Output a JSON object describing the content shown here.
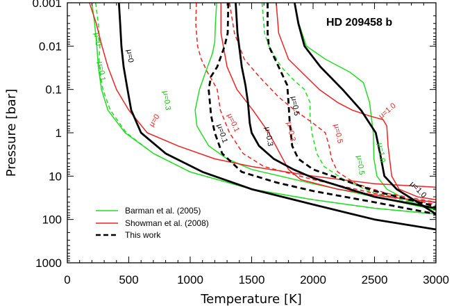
{
  "chart_data": {
    "type": "line",
    "title": "HD 209458 b",
    "xlabel": "Temperature [K]",
    "ylabel": "Pressure [bar]",
    "xlim": [
      0,
      3000
    ],
    "ylim": [
      0.001,
      1000
    ],
    "y_scale": "log",
    "y_reversed": true,
    "x_ticks": [
      0,
      500,
      1000,
      1500,
      2000,
      2500,
      3000
    ],
    "x_tick_labels": [
      "0",
      "500",
      "1000",
      "1500",
      "2000",
      "2500",
      "3000"
    ],
    "y_ticks": [
      0.001,
      0.01,
      0.1,
      1,
      10,
      100,
      1000
    ],
    "y_tick_labels": [
      "0.001",
      "0.01",
      "0.1",
      "1",
      "10",
      "100",
      "1000"
    ],
    "legend": {
      "placement": "bottom-left",
      "entries": [
        {
          "label": "Barman et al. (2005)",
          "color": "#22dd22",
          "style": "solid"
        },
        {
          "label": "Showman et al. (2008)",
          "color": "#ee2222",
          "style": "solid"
        },
        {
          "label": "This work",
          "color": "#000000",
          "style": "dashed"
        }
      ]
    },
    "series": [
      {
        "name": "Barman mu=0",
        "color": "#22dd22",
        "dash": false,
        "label": "μ=0",
        "points": [
          [
            200,
            0.001
          ],
          [
            222,
            0.003
          ],
          [
            240,
            0.01
          ],
          [
            252,
            0.03
          ],
          [
            278,
            0.1
          ],
          [
            330,
            0.3
          ],
          [
            470,
            1
          ],
          [
            700,
            3
          ],
          [
            1000,
            8
          ],
          [
            1500,
            20
          ],
          [
            2000,
            35
          ],
          [
            2500,
            55
          ],
          [
            3000,
            75
          ]
        ]
      },
      {
        "name": "Barman mu=0.1",
        "color": "#22dd22",
        "dash": true,
        "label": "μ=0.1",
        "points": [
          [
            230,
            0.001
          ],
          [
            252,
            0.003
          ],
          [
            265,
            0.01
          ],
          [
            258,
            0.02
          ],
          [
            265,
            0.04
          ],
          [
            290,
            0.1
          ],
          [
            350,
            0.3
          ],
          [
            480,
            1
          ],
          [
            700,
            3
          ],
          [
            1000,
            8
          ],
          [
            1500,
            20
          ],
          [
            2000,
            35
          ],
          [
            2500,
            55
          ],
          [
            3000,
            75
          ]
        ]
      },
      {
        "name": "Barman mu=0.3",
        "color": "#22dd22",
        "dash": false,
        "label": "μ=0.3",
        "points": [
          [
            1215,
            0.001
          ],
          [
            1205,
            0.003
          ],
          [
            1200,
            0.008
          ],
          [
            1180,
            0.015
          ],
          [
            1125,
            0.04
          ],
          [
            1075,
            0.1
          ],
          [
            1040,
            0.3
          ],
          [
            1055,
            0.7
          ],
          [
            1150,
            2
          ],
          [
            1300,
            4
          ],
          [
            1500,
            7
          ],
          [
            2000,
            15
          ],
          [
            2500,
            30
          ],
          [
            3000,
            60
          ]
        ]
      },
      {
        "name": "Barman mu=0.5",
        "color": "#22dd22",
        "dash": true,
        "label": "μ=0.5",
        "points": [
          [
            1585,
            0.001
          ],
          [
            1605,
            0.005
          ],
          [
            1640,
            0.01
          ],
          [
            1740,
            0.03
          ],
          [
            1840,
            0.06
          ],
          [
            1930,
            0.1
          ],
          [
            1975,
            0.2
          ],
          [
            1975,
            0.4
          ],
          [
            1990,
            1
          ],
          [
            2030,
            3
          ],
          [
            2090,
            6
          ],
          [
            2250,
            12
          ],
          [
            2500,
            25
          ],
          [
            3000,
            55
          ]
        ]
      },
      {
        "name": "Barman mu=1.0",
        "color": "#22dd22",
        "dash": false,
        "label": "μ=1.0",
        "points": [
          [
            1850,
            0.001
          ],
          [
            1885,
            0.003
          ],
          [
            1945,
            0.01
          ],
          [
            2100,
            0.02
          ],
          [
            2300,
            0.04
          ],
          [
            2410,
            0.07
          ],
          [
            2460,
            0.2
          ],
          [
            2490,
            1
          ],
          [
            2495,
            4
          ],
          [
            2520,
            10
          ],
          [
            2600,
            20
          ],
          [
            2800,
            40
          ],
          [
            3000,
            60
          ]
        ]
      },
      {
        "name": "Showman mu=0",
        "color": "#ee2222",
        "dash": false,
        "label": "μ=0",
        "points": [
          [
            180,
            0.001
          ],
          [
            235,
            0.003
          ],
          [
            282,
            0.01
          ],
          [
            330,
            0.03
          ],
          [
            400,
            0.1
          ],
          [
            500,
            0.3
          ],
          [
            650,
            1
          ],
          [
            900,
            2
          ],
          [
            1200,
            4
          ],
          [
            1500,
            6
          ],
          [
            2000,
            10
          ],
          [
            2500,
            15
          ],
          [
            3000,
            18
          ]
        ]
      },
      {
        "name": "Showman mu=0.1",
        "color": "#ee2222",
        "dash": true,
        "label": "μ=0.1",
        "points": [
          [
            1050,
            0.001
          ],
          [
            1045,
            0.003
          ],
          [
            1060,
            0.01
          ],
          [
            1090,
            0.02
          ],
          [
            1140,
            0.04
          ],
          [
            1190,
            0.07
          ],
          [
            1220,
            0.1
          ],
          [
            1245,
            0.3
          ],
          [
            1320,
            1
          ],
          [
            1430,
            3
          ],
          [
            1600,
            6
          ],
          [
            2000,
            12
          ],
          [
            2500,
            25
          ],
          [
            3000,
            45
          ]
        ]
      },
      {
        "name": "Showman mu=0.3",
        "color": "#ee2222",
        "dash": false,
        "label": "μ=0.3",
        "points": [
          [
            1250,
            0.001
          ],
          [
            1250,
            0.005
          ],
          [
            1300,
            0.03
          ],
          [
            1380,
            0.1
          ],
          [
            1510,
            0.3
          ],
          [
            1640,
            1
          ],
          [
            1730,
            3
          ],
          [
            1800,
            7
          ],
          [
            1900,
            12
          ],
          [
            2200,
            20
          ],
          [
            2600,
            30
          ],
          [
            3000,
            40
          ]
        ]
      },
      {
        "name": "Showman mu=0.5",
        "color": "#ee2222",
        "dash": true,
        "label": "μ=0.5",
        "points": [
          [
            1320,
            0.001
          ],
          [
            1360,
            0.005
          ],
          [
            1440,
            0.02
          ],
          [
            1560,
            0.05
          ],
          [
            1720,
            0.15
          ],
          [
            1850,
            0.3
          ],
          [
            2000,
            0.6
          ],
          [
            2100,
            1
          ],
          [
            2130,
            2
          ],
          [
            2150,
            4
          ],
          [
            2200,
            8
          ],
          [
            2350,
            15
          ],
          [
            2600,
            25
          ],
          [
            3000,
            40
          ]
        ]
      },
      {
        "name": "Showman mu=1.0",
        "color": "#ee2222",
        "dash": false,
        "label": "μ=1.0",
        "points": [
          [
            1700,
            0.001
          ],
          [
            1720,
            0.005
          ],
          [
            1800,
            0.02
          ],
          [
            2050,
            0.1
          ],
          [
            2200,
            0.2
          ],
          [
            2320,
            0.3
          ],
          [
            2450,
            0.4
          ],
          [
            2570,
            0.5
          ],
          [
            2600,
            0.7
          ],
          [
            2610,
            2
          ],
          [
            2640,
            10
          ],
          [
            2700,
            20
          ],
          [
            2850,
            30
          ],
          [
            3000,
            35
          ]
        ]
      },
      {
        "name": "This work mu=0",
        "color": "#000000",
        "dash": false,
        "label": "μ=0",
        "points": [
          [
            420,
            0.001
          ],
          [
            430,
            0.003
          ],
          [
            440,
            0.01
          ],
          [
            458,
            0.03
          ],
          [
            490,
            0.1
          ],
          [
            520,
            0.3
          ],
          [
            600,
            1
          ],
          [
            800,
            3
          ],
          [
            1100,
            8
          ],
          [
            1500,
            20
          ],
          [
            2000,
            45
          ],
          [
            2500,
            100
          ],
          [
            3000,
            170
          ]
        ]
      },
      {
        "name": "This work mu=0.1",
        "color": "#000000",
        "dash": true,
        "label": "μ=0.1",
        "points": [
          [
            1310,
            0.001
          ],
          [
            1305,
            0.005
          ],
          [
            1280,
            0.01
          ],
          [
            1220,
            0.03
          ],
          [
            1170,
            0.05
          ],
          [
            1150,
            0.1
          ],
          [
            1170,
            0.4
          ],
          [
            1200,
            1
          ],
          [
            1260,
            3
          ],
          [
            1420,
            8
          ],
          [
            1700,
            14
          ],
          [
            2000,
            22
          ],
          [
            2500,
            40
          ],
          [
            3000,
            75
          ]
        ]
      },
      {
        "name": "This work mu=0.3",
        "color": "#000000",
        "dash": false,
        "label": "μ=0.3",
        "points": [
          [
            1370,
            0.001
          ],
          [
            1385,
            0.005
          ],
          [
            1420,
            0.03
          ],
          [
            1450,
            0.08
          ],
          [
            1470,
            0.2
          ],
          [
            1485,
            0.6
          ],
          [
            1500,
            1
          ],
          [
            1560,
            2
          ],
          [
            1680,
            4
          ],
          [
            1840,
            7
          ],
          [
            2000,
            11
          ],
          [
            2500,
            30
          ],
          [
            3000,
            55
          ]
        ]
      },
      {
        "name": "This work mu=0.5",
        "color": "#000000",
        "dash": true,
        "label": "μ=0.5",
        "points": [
          [
            1630,
            0.001
          ],
          [
            1630,
            0.005
          ],
          [
            1640,
            0.01
          ],
          [
            1720,
            0.03
          ],
          [
            1790,
            0.08
          ],
          [
            1800,
            0.2
          ],
          [
            1810,
            0.6
          ],
          [
            1830,
            2
          ],
          [
            1880,
            4
          ],
          [
            2000,
            7
          ],
          [
            2200,
            11
          ],
          [
            2500,
            22
          ],
          [
            3000,
            50
          ]
        ]
      },
      {
        "name": "This work mu=1.0",
        "color": "#000000",
        "dash": false,
        "label": "μ=1.0",
        "points": [
          [
            1850,
            0.001
          ],
          [
            1880,
            0.003
          ],
          [
            1930,
            0.01
          ],
          [
            2060,
            0.03
          ],
          [
            2240,
            0.1
          ],
          [
            2390,
            0.3
          ],
          [
            2510,
            1
          ],
          [
            2545,
            3
          ],
          [
            2580,
            10
          ],
          [
            2680,
            20
          ],
          [
            2850,
            40
          ],
          [
            3000,
            75
          ]
        ]
      }
    ]
  }
}
